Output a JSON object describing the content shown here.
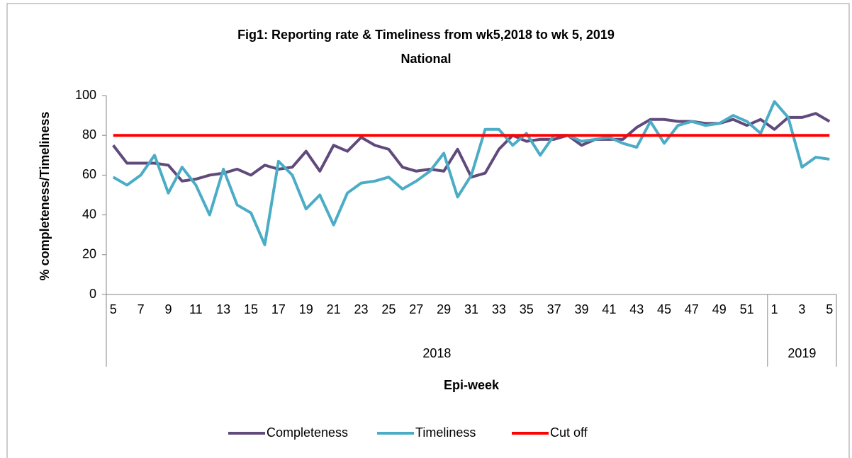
{
  "chart_data": {
    "type": "line",
    "title": "Fig1: Reporting rate & Timeliness from wk5,2018 to wk 5, 2019",
    "subtitle": "National",
    "y_label": "% completeness/Timeliness",
    "x_label": "Epi-week",
    "categories": [
      "5",
      null,
      "7",
      null,
      "9",
      null,
      "11",
      null,
      "13",
      null,
      "15",
      null,
      "17",
      null,
      "19",
      null,
      "21",
      null,
      "23",
      null,
      "25",
      null,
      "27",
      null,
      "29",
      null,
      "31",
      null,
      "33",
      null,
      "35",
      null,
      "37",
      null,
      "39",
      null,
      "41",
      null,
      "43",
      null,
      "45",
      null,
      "47",
      null,
      "49",
      null,
      "51",
      null,
      "1",
      null,
      "3",
      null,
      "5"
    ],
    "groups": [
      {
        "label": "2018",
        "span": 48
      },
      {
        "label": "2019",
        "span": 5
      }
    ],
    "series": [
      {
        "name": "Completeness",
        "color": "#604a7b",
        "values": [
          75,
          66,
          66,
          66,
          65,
          57,
          58,
          60,
          61,
          63,
          60,
          65,
          63,
          64,
          72,
          62,
          75,
          72,
          79,
          75,
          73,
          64,
          62,
          63,
          62,
          73,
          59,
          61,
          73,
          80,
          77,
          78,
          78,
          80,
          75,
          78,
          78,
          78,
          84,
          88,
          88,
          87,
          87,
          86,
          86,
          88,
          85,
          88,
          83,
          89,
          89,
          91,
          87
        ]
      },
      {
        "name": "Timeliness",
        "color": "#4bacc6",
        "values": [
          59,
          55,
          60,
          70,
          51,
          64,
          55,
          40,
          63,
          45,
          41,
          25,
          67,
          60,
          43,
          50,
          35,
          51,
          56,
          57,
          59,
          53,
          57,
          62,
          71,
          49,
          60,
          83,
          83,
          75,
          81,
          70,
          80,
          80,
          77,
          78,
          79,
          76,
          74,
          87,
          76,
          85,
          87,
          85,
          86,
          90,
          87,
          81,
          97,
          89,
          64,
          69,
          68
        ]
      },
      {
        "name": "Cut off",
        "color": "#ff0000",
        "values": [
          80,
          80,
          80,
          80,
          80,
          80,
          80,
          80,
          80,
          80,
          80,
          80,
          80,
          80,
          80,
          80,
          80,
          80,
          80,
          80,
          80,
          80,
          80,
          80,
          80,
          80,
          80,
          80,
          80,
          80,
          80,
          80,
          80,
          80,
          80,
          80,
          80,
          80,
          80,
          80,
          80,
          80,
          80,
          80,
          80,
          80,
          80,
          80,
          80,
          80,
          80,
          80,
          80
        ]
      }
    ],
    "ylim": [
      0,
      100
    ],
    "yticks": [
      0,
      20,
      40,
      60,
      80,
      100
    ],
    "legend": "bottom"
  }
}
